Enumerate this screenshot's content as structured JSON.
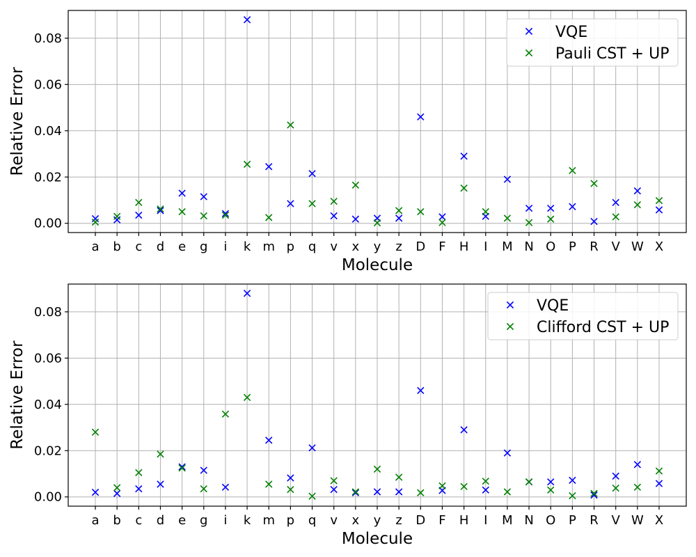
{
  "chart_data": [
    {
      "type": "scatter",
      "xlabel": "Molecule",
      "ylabel": "Relative Error",
      "categories": [
        "a",
        "b",
        "c",
        "d",
        "e",
        "g",
        "i",
        "k",
        "m",
        "p",
        "q",
        "v",
        "x",
        "y",
        "z",
        "D",
        "F",
        "H",
        "I",
        "M",
        "N",
        "O",
        "P",
        "R",
        "V",
        "W",
        "X"
      ],
      "ylim": [
        -0.004,
        0.092
      ],
      "yticks": [
        0.0,
        0.02,
        0.04,
        0.06,
        0.08
      ],
      "ytick_labels": [
        "0.00",
        "0.02",
        "0.04",
        "0.06",
        "0.08"
      ],
      "grid": true,
      "legend_position": "upper-right",
      "marker": "x",
      "series": [
        {
          "name": "VQE",
          "color": "#0000ff",
          "values": [
            0.002,
            0.0015,
            0.0035,
            0.0055,
            0.013,
            0.0115,
            0.0042,
            0.088,
            0.0245,
            0.0085,
            0.0215,
            0.0032,
            0.0018,
            0.0022,
            0.0022,
            0.046,
            0.0028,
            0.029,
            0.003,
            0.019,
            0.0065,
            0.0065,
            0.0072,
            0.0008,
            0.009,
            0.014,
            0.0058
          ]
        },
        {
          "name": "Pauli CST + UP",
          "color": "#008000",
          "values": [
            0.0005,
            0.003,
            0.009,
            0.0062,
            0.005,
            0.0032,
            0.0035,
            0.0255,
            0.0025,
            0.0425,
            0.0085,
            0.0095,
            0.0165,
            0.0002,
            0.0055,
            0.005,
            0.0003,
            0.0152,
            0.005,
            0.0022,
            0.0003,
            0.0018,
            0.0228,
            0.0172,
            0.0028,
            0.008,
            0.0098
          ]
        }
      ]
    },
    {
      "type": "scatter",
      "xlabel": "Molecule",
      "ylabel": "Relative Error",
      "categories": [
        "a",
        "b",
        "c",
        "d",
        "e",
        "g",
        "i",
        "k",
        "m",
        "p",
        "q",
        "v",
        "x",
        "y",
        "z",
        "D",
        "F",
        "H",
        "I",
        "M",
        "N",
        "O",
        "P",
        "R",
        "V",
        "W",
        "X"
      ],
      "ylim": [
        -0.004,
        0.092
      ],
      "yticks": [
        0.0,
        0.02,
        0.04,
        0.06,
        0.08
      ],
      "ytick_labels": [
        "0.00",
        "0.02",
        "0.04",
        "0.06",
        "0.08"
      ],
      "grid": true,
      "legend_position": "upper-right",
      "marker": "x",
      "series": [
        {
          "name": "VQE",
          "color": "#0000ff",
          "values": [
            0.002,
            0.0015,
            0.0035,
            0.0055,
            0.013,
            0.0115,
            0.0042,
            0.088,
            0.0245,
            0.0082,
            0.0212,
            0.0032,
            0.0018,
            0.0022,
            0.0022,
            0.046,
            0.0028,
            0.029,
            0.003,
            0.019,
            0.0065,
            0.0065,
            0.0072,
            0.0008,
            0.009,
            0.014,
            0.0058
          ]
        },
        {
          "name": "Clifford CST + UP",
          "color": "#008000",
          "values": [
            0.028,
            0.004,
            0.0105,
            0.0185,
            0.0125,
            0.0035,
            0.0358,
            0.043,
            0.0055,
            0.0032,
            0.0003,
            0.007,
            0.0022,
            0.012,
            0.0085,
            0.0018,
            0.0048,
            0.0045,
            0.0068,
            0.0022,
            0.0065,
            0.003,
            0.0005,
            0.0015,
            0.0038,
            0.0042,
            0.0112
          ]
        }
      ]
    }
  ]
}
